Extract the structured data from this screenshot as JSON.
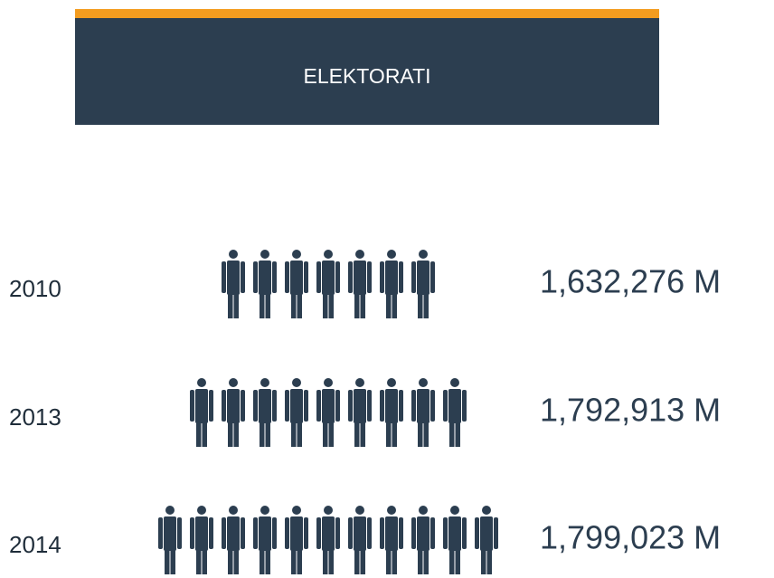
{
  "header": {
    "title": "ELEKTORATI"
  },
  "rows": [
    {
      "year": "2010",
      "icons": 7,
      "value": "1,632,276 M"
    },
    {
      "year": "2013",
      "icons": 9,
      "value": "1,792,913 M"
    },
    {
      "year": "2014",
      "icons": 11,
      "value": "1,799,023 M"
    }
  ]
}
